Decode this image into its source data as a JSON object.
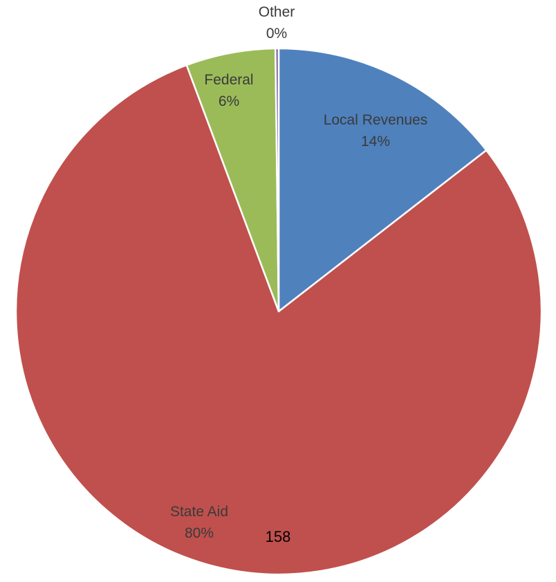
{
  "chart_data": {
    "type": "pie",
    "title": "",
    "start_angle_deg": 0,
    "direction": "clockwise",
    "slices": [
      {
        "name": "Local Revenues",
        "label": "Local Revenues",
        "value_label": "14%",
        "value": 14.5,
        "color": "#4f81bd"
      },
      {
        "name": "State Aid",
        "label": "State Aid",
        "value_label": "80%",
        "value": 79.8,
        "color": "#c0504d"
      },
      {
        "name": "Federal",
        "label": "Federal",
        "value_label": "6%",
        "value": 5.5,
        "color": "#9bbb59"
      },
      {
        "name": "Other",
        "label": "Other",
        "value_label": "0%",
        "value": 0.2,
        "color": "#8064a2"
      }
    ],
    "legend": "none"
  },
  "page": {
    "number": "158"
  }
}
